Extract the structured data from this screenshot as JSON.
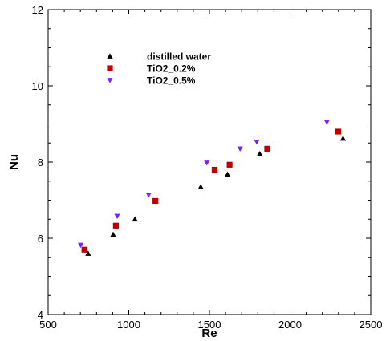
{
  "chart_data": {
    "type": "scatter",
    "xlabel": "Re",
    "ylabel": "Nu",
    "xlim": [
      500,
      2500
    ],
    "ylim": [
      4,
      12
    ],
    "xticks": [
      500,
      1000,
      1500,
      2000,
      2500
    ],
    "yticks": [
      4,
      6,
      8,
      10,
      12
    ],
    "xtick_labels": [
      "500",
      "1000",
      "1500",
      "2000",
      "2500"
    ],
    "ytick_labels": [
      "4",
      "6",
      "8",
      "10",
      "12"
    ],
    "grid": false,
    "legend_position": "top-left",
    "series": [
      {
        "name": "distilled water",
        "marker": "triangle-up",
        "color": "#000000",
        "points": [
          {
            "x": 748,
            "y": 5.6
          },
          {
            "x": 903,
            "y": 6.1
          },
          {
            "x": 1038,
            "y": 6.5
          },
          {
            "x": 1446,
            "y": 7.35
          },
          {
            "x": 1612,
            "y": 7.68
          },
          {
            "x": 1812,
            "y": 8.22
          },
          {
            "x": 2328,
            "y": 8.62
          }
        ]
      },
      {
        "name": "TiO2_0.2%",
        "marker": "square",
        "color": "#c00000",
        "points": [
          {
            "x": 725,
            "y": 5.7
          },
          {
            "x": 920,
            "y": 6.33
          },
          {
            "x": 1165,
            "y": 6.98
          },
          {
            "x": 1532,
            "y": 7.8
          },
          {
            "x": 1625,
            "y": 7.93
          },
          {
            "x": 1858,
            "y": 8.35
          },
          {
            "x": 2298,
            "y": 8.8
          }
        ]
      },
      {
        "name": "TiO2_0.5%",
        "marker": "triangle-down",
        "color": "#7a1fff",
        "points": [
          {
            "x": 702,
            "y": 5.82
          },
          {
            "x": 928,
            "y": 6.58
          },
          {
            "x": 1123,
            "y": 7.14
          },
          {
            "x": 1484,
            "y": 7.98
          },
          {
            "x": 1690,
            "y": 8.35
          },
          {
            "x": 1793,
            "y": 8.53
          },
          {
            "x": 2228,
            "y": 9.05
          }
        ]
      }
    ]
  }
}
